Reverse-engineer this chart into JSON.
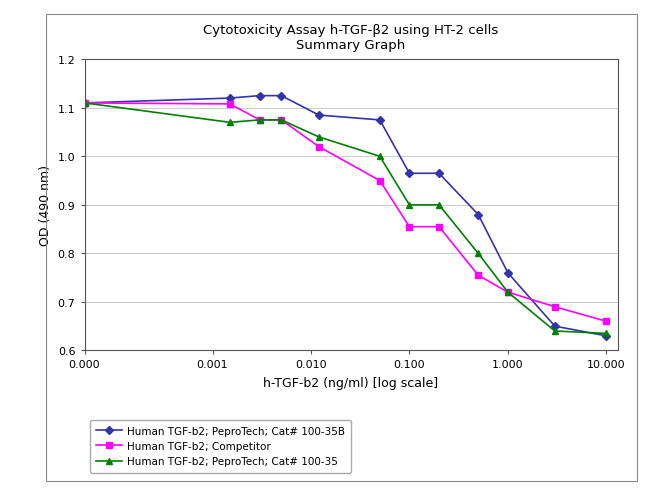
{
  "title_line1": "Cytotoxicity Assay h-TGF-β2 using HT-2 cells",
  "title_line2": "Summary Graph",
  "xlabel": "h-TGF-b2 (ng/ml) [log scale]",
  "ylabel": "OD (490 nm)",
  "ylim": [
    0.6,
    1.2
  ],
  "yticks": [
    0.6,
    0.7,
    0.8,
    0.9,
    1.0,
    1.1,
    1.2
  ],
  "background_color": "#ffffff",
  "series": [
    {
      "label": "Human TGF-b2; PeproTech; Cat# 100-35B",
      "color": "#3333aa",
      "marker": "D",
      "markersize": 4,
      "x": [
        5e-05,
        0.0015,
        0.003,
        0.005,
        0.012,
        0.05,
        0.1,
        0.2,
        0.5,
        1.0,
        3.0,
        10.0
      ],
      "y": [
        1.11,
        1.12,
        1.125,
        1.125,
        1.085,
        1.075,
        0.965,
        0.965,
        0.88,
        0.76,
        0.65,
        0.63
      ]
    },
    {
      "label": "Human TGF-b2; Competitor",
      "color": "#ff00ff",
      "marker": "s",
      "markersize": 4,
      "x": [
        5e-05,
        0.0015,
        0.003,
        0.005,
        0.012,
        0.05,
        0.1,
        0.2,
        0.5,
        1.0,
        3.0,
        10.0
      ],
      "y": [
        1.11,
        1.108,
        1.075,
        1.075,
        1.02,
        0.95,
        0.855,
        0.855,
        0.755,
        0.72,
        0.69,
        0.66
      ]
    },
    {
      "label": "Human TGF-b2; PeproTech; Cat# 100-35",
      "color": "#008000",
      "marker": "^",
      "markersize": 5,
      "x": [
        5e-05,
        0.0015,
        0.003,
        0.005,
        0.012,
        0.05,
        0.1,
        0.2,
        0.5,
        1.0,
        3.0,
        10.0
      ],
      "y": [
        1.11,
        1.07,
        1.075,
        1.075,
        1.04,
        1.0,
        0.9,
        0.9,
        0.8,
        0.72,
        0.64,
        0.635
      ]
    }
  ],
  "xtick_positions": [
    5e-05,
    0.001,
    0.01,
    0.1,
    1.0,
    10.0
  ],
  "xtick_labels": [
    "0.000",
    "0.001",
    "0.010",
    "0.100",
    "1.000",
    "10.000"
  ]
}
